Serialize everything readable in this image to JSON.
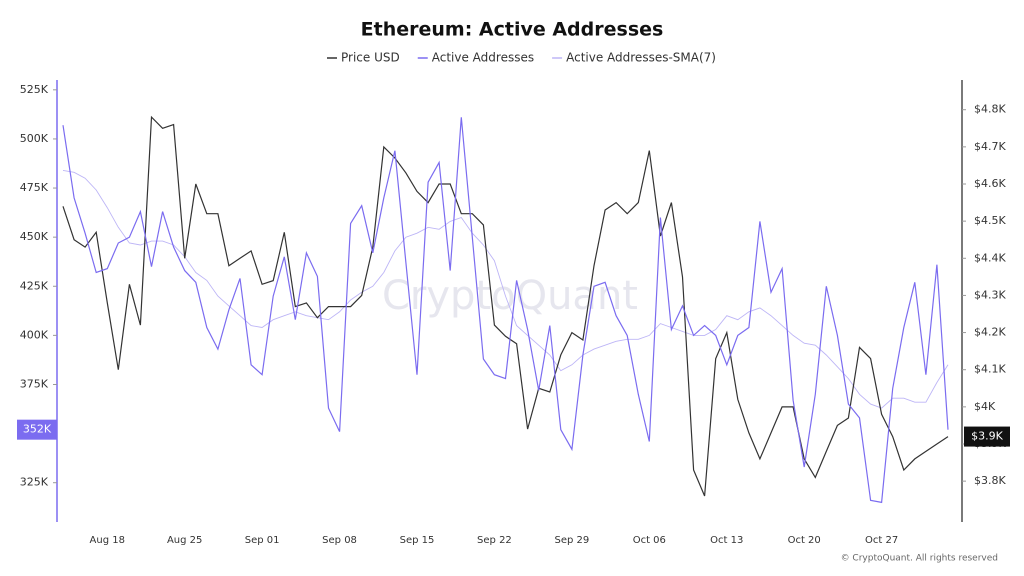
{
  "chart_data": {
    "type": "line",
    "title": "Ethereum: Active Addresses",
    "watermark": "CryptoQuant",
    "credit": "© CryptoQuant. All rights reserved",
    "categories": [
      null,
      null,
      null,
      null,
      "Aug 18",
      null,
      null,
      null,
      null,
      null,
      null,
      "Aug 25",
      null,
      null,
      null,
      null,
      null,
      null,
      "Sep 01",
      null,
      null,
      null,
      null,
      null,
      null,
      "Sep 08",
      null,
      null,
      null,
      null,
      null,
      null,
      "Sep 15",
      null,
      null,
      null,
      null,
      null,
      null,
      "Sep 22",
      null,
      null,
      null,
      null,
      null,
      null,
      "Sep 29",
      null,
      null,
      null,
      null,
      null,
      null,
      "Oct 06",
      null,
      null,
      null,
      null,
      null,
      null,
      "Oct 13",
      null,
      null,
      null,
      null,
      null,
      null,
      "Oct 20",
      null,
      null,
      null,
      null,
      null,
      null,
      "Oct 27",
      null,
      null,
      null,
      null,
      null,
      null
    ],
    "series": [
      {
        "name": "Price USD",
        "color": "#333333",
        "axis": "y2",
        "last_label": "$3.9K",
        "values": [
          4540,
          4450,
          4430,
          4470,
          4280,
          4100,
          4330,
          4220,
          4780,
          4750,
          4760,
          4400,
          4600,
          4520,
          4520,
          4380,
          4400,
          4420,
          4330,
          4340,
          4470,
          4270,
          4280,
          4240,
          4270,
          4270,
          4270,
          4300,
          4430,
          4700,
          4670,
          4630,
          4580,
          4550,
          4600,
          4600,
          4520,
          4520,
          4490,
          4220,
          4190,
          4170,
          3940,
          4050,
          4040,
          4140,
          4200,
          4180,
          4380,
          4530,
          4550,
          4520,
          4550,
          4690,
          4460,
          4550,
          4350,
          3830,
          3760,
          4130,
          4200,
          4020,
          3930,
          3860,
          3930,
          4000,
          4000,
          3860,
          3810,
          3880,
          3950,
          3970,
          4160,
          4130,
          3980,
          3920,
          3830,
          3860,
          3880,
          3900,
          3920
        ]
      },
      {
        "name": "Active Addresses",
        "color": "#7b6cf0",
        "last_label": "352K",
        "values": [
          507000,
          470000,
          452000,
          432000,
          434000,
          447000,
          450000,
          463000,
          435000,
          463000,
          445000,
          433000,
          427000,
          404000,
          393000,
          413000,
          429000,
          385000,
          380000,
          420000,
          440000,
          408000,
          442000,
          430000,
          363000,
          351000,
          457000,
          466000,
          442000,
          470000,
          494000,
          437000,
          380000,
          478000,
          488000,
          433000,
          511000,
          450000,
          388000,
          380000,
          378000,
          428000,
          403000,
          372000,
          405000,
          352000,
          342000,
          390000,
          425000,
          427000,
          410000,
          400000,
          370000,
          346000,
          460000,
          403000,
          415000,
          400000,
          405000,
          400000,
          385000,
          400000,
          404000,
          458000,
          422000,
          434000,
          367000,
          333000,
          370000,
          425000,
          400000,
          365000,
          358000,
          316000,
          315000,
          373000,
          404000,
          427000,
          380000,
          436000,
          352000
        ]
      },
      {
        "name": "Active Addresses-SMA(7)",
        "color": "#bdb5f6",
        "values": [
          484000,
          483000,
          480000,
          474000,
          465000,
          455000,
          447000,
          446000,
          448000,
          448000,
          446000,
          440000,
          432000,
          428000,
          420000,
          415000,
          410000,
          405000,
          404000,
          408000,
          410000,
          412000,
          410000,
          409000,
          408000,
          412000,
          418000,
          422000,
          425000,
          432000,
          443000,
          450000,
          452000,
          455000,
          454000,
          458000,
          460000,
          452000,
          446000,
          438000,
          420000,
          405000,
          400000,
          395000,
          390000,
          382000,
          385000,
          390000,
          393000,
          395000,
          397000,
          398000,
          398000,
          400000,
          406000,
          404000,
          402000,
          400000,
          400000,
          403000,
          410000,
          408000,
          412000,
          414000,
          410000,
          405000,
          400000,
          396000,
          395000,
          390000,
          384000,
          378000,
          370000,
          365000,
          363000,
          368000,
          368000,
          366000,
          366000,
          376000,
          385000
        ]
      }
    ],
    "ylim": [
      305000,
      530000
    ],
    "yticks": [
      {
        "value": 325000,
        "label": "325K"
      },
      {
        "value": 350000,
        "label": "350K"
      },
      {
        "value": 375000,
        "label": "375K"
      },
      {
        "value": 400000,
        "label": "400K"
      },
      {
        "value": 425000,
        "label": "425K"
      },
      {
        "value": 450000,
        "label": "450K"
      },
      {
        "value": 475000,
        "label": "475K"
      },
      {
        "value": 500000,
        "label": "500K"
      },
      {
        "value": 525000,
        "label": "525K"
      }
    ],
    "y2lim": [
      3690,
      4880
    ],
    "y2ticks": [
      {
        "value": 3800,
        "label": "$3.8K"
      },
      {
        "value": 3900,
        "label": "$3.9K"
      },
      {
        "value": 4000,
        "label": "$4K"
      },
      {
        "value": 4100,
        "label": "$4.1K"
      },
      {
        "value": 4200,
        "label": "$4.2K"
      },
      {
        "value": 4300,
        "label": "$4.3K"
      },
      {
        "value": 4400,
        "label": "$4.4K"
      },
      {
        "value": 4500,
        "label": "$4.5K"
      },
      {
        "value": 4600,
        "label": "$4.6K"
      },
      {
        "value": 4700,
        "label": "$4.7K"
      },
      {
        "value": 4800,
        "label": "$4.8K"
      }
    ],
    "grid": false
  }
}
